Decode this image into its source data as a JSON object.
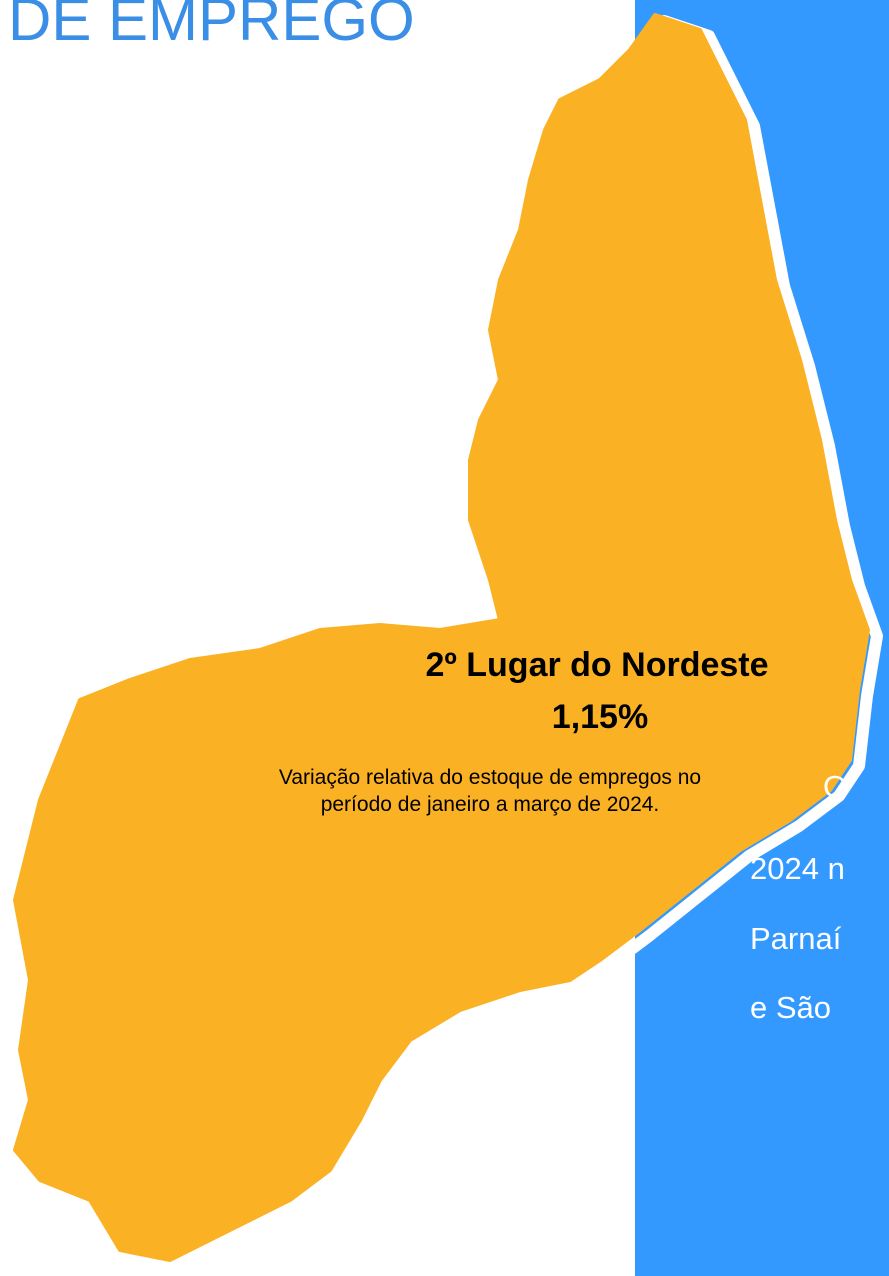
{
  "header": {
    "title": "DE EMPREGO"
  },
  "highlight": {
    "rank": "2º Lugar do Nordeste",
    "value": "1,15%",
    "description": [
      "Variação relativa do estoque de empregos no",
      "período de janeiro a março de 2024."
    ]
  },
  "panel": {
    "lines": [
      "O",
      "2024 n",
      "Parnaí",
      "e São"
    ]
  }
}
